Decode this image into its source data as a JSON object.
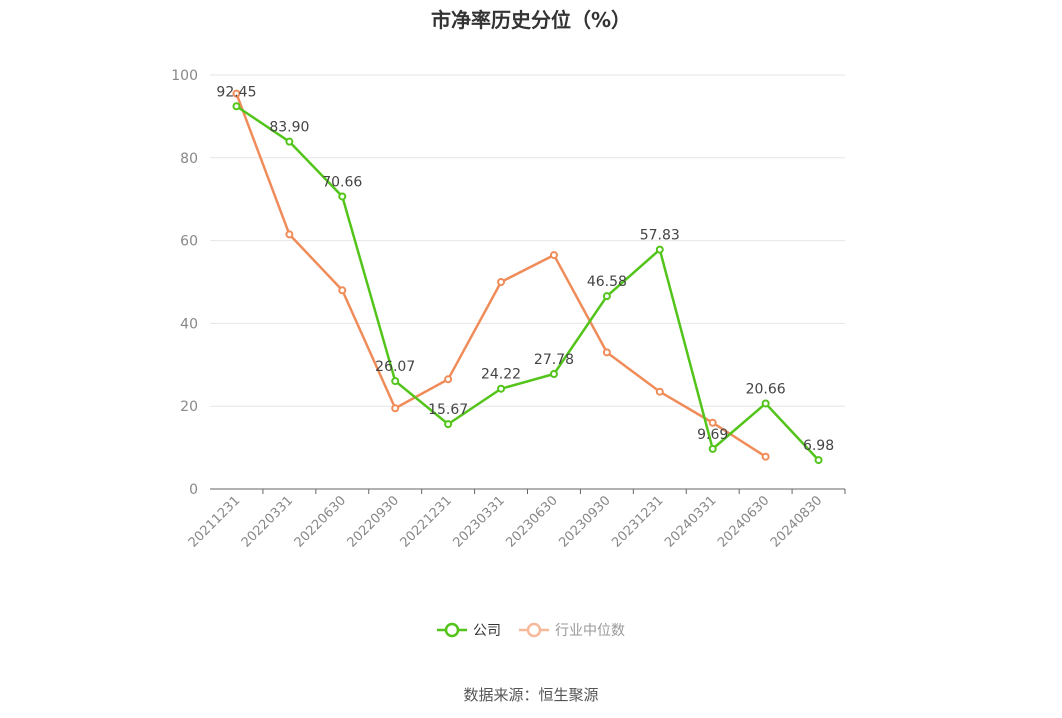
{
  "chart_data": {
    "type": "line",
    "title": "市净率历史分位（%）",
    "xlabel": "",
    "ylabel": "",
    "ylim": [
      0,
      100
    ],
    "yticks": [
      0,
      20,
      40,
      60,
      80,
      100
    ],
    "categories": [
      "20211231",
      "20220331",
      "20220630",
      "20220930",
      "20221231",
      "20230331",
      "20230630",
      "20230930",
      "20231231",
      "20240331",
      "20240630",
      "20240830"
    ],
    "series": [
      {
        "name": "公司",
        "color": "#52c41a",
        "values": [
          92.45,
          83.9,
          70.66,
          26.07,
          15.67,
          24.22,
          27.78,
          46.58,
          57.83,
          9.69,
          20.66,
          6.98
        ],
        "labels": [
          "92.45",
          "83.90",
          "70.66",
          "26.07",
          "15.67",
          "24.22",
          "27.78",
          "46.58",
          "57.83",
          "9.69",
          "20.66",
          "6.98"
        ]
      },
      {
        "name": "行业中位数",
        "color": "#f08c5a",
        "values": [
          95.5,
          61.5,
          48.0,
          19.5,
          26.5,
          50.0,
          56.5,
          33.0,
          23.5,
          16.0,
          7.8,
          null
        ]
      }
    ],
    "legend_position": "bottom",
    "grid": true
  },
  "source": "数据来源：恒生聚源"
}
